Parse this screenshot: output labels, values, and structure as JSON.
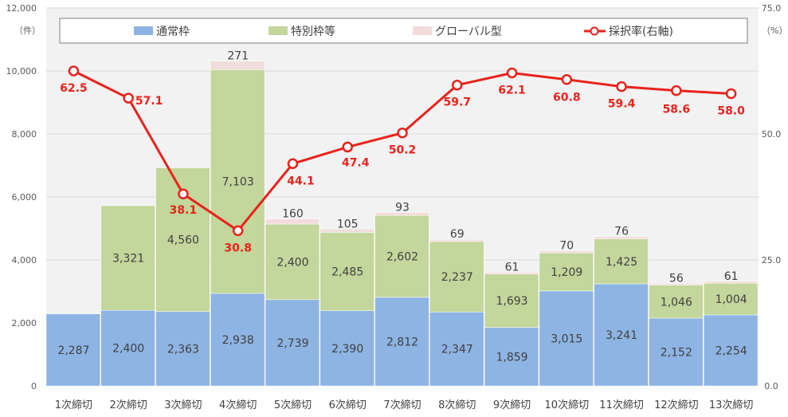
{
  "chart_data": {
    "type": "bar",
    "stacked": true,
    "categories": [
      "1次締切",
      "2次締切",
      "3次締切",
      "4次締切",
      "5次締切",
      "6次締切",
      "7次締切",
      "8次締切",
      "9次締切",
      "10次締切",
      "11次締切",
      "12次締切",
      "13次締切"
    ],
    "series": [
      {
        "name": "通常枠",
        "color": "#8eb4e3",
        "values": [
          2287,
          2400,
          2363,
          2938,
          2739,
          2390,
          2812,
          2347,
          1859,
          3015,
          3241,
          2152,
          2254
        ]
      },
      {
        "name": "特別枠等",
        "color": "#c3d69b",
        "values": [
          null,
          3321,
          4560,
          7103,
          2400,
          2485,
          2602,
          2237,
          1693,
          1209,
          1425,
          1046,
          1004
        ]
      },
      {
        "name": "グローバル型",
        "color": "#f2dcdb",
        "values": [
          null,
          null,
          null,
          271,
          160,
          105,
          93,
          69,
          61,
          70,
          76,
          56,
          61
        ]
      }
    ],
    "line_series": {
      "name": "採択率(右軸)",
      "color": "#e8231b",
      "values": [
        62.5,
        57.1,
        38.1,
        30.8,
        44.1,
        47.4,
        50.2,
        59.7,
        62.1,
        60.8,
        59.4,
        58.6,
        58.0
      ]
    },
    "y_left": {
      "unit": "（件）",
      "ylim": [
        0,
        12000
      ],
      "ticks": [
        "0",
        "2,000",
        "4,000",
        "6,000",
        "8,000",
        "10,000",
        "12,000"
      ]
    },
    "y_right": {
      "unit": "（%）",
      "ylim": [
        0,
        75
      ],
      "ticks": [
        "0.0",
        "25.0",
        "50.0",
        "75.0"
      ]
    },
    "grid": true,
    "legend_position": "top"
  }
}
